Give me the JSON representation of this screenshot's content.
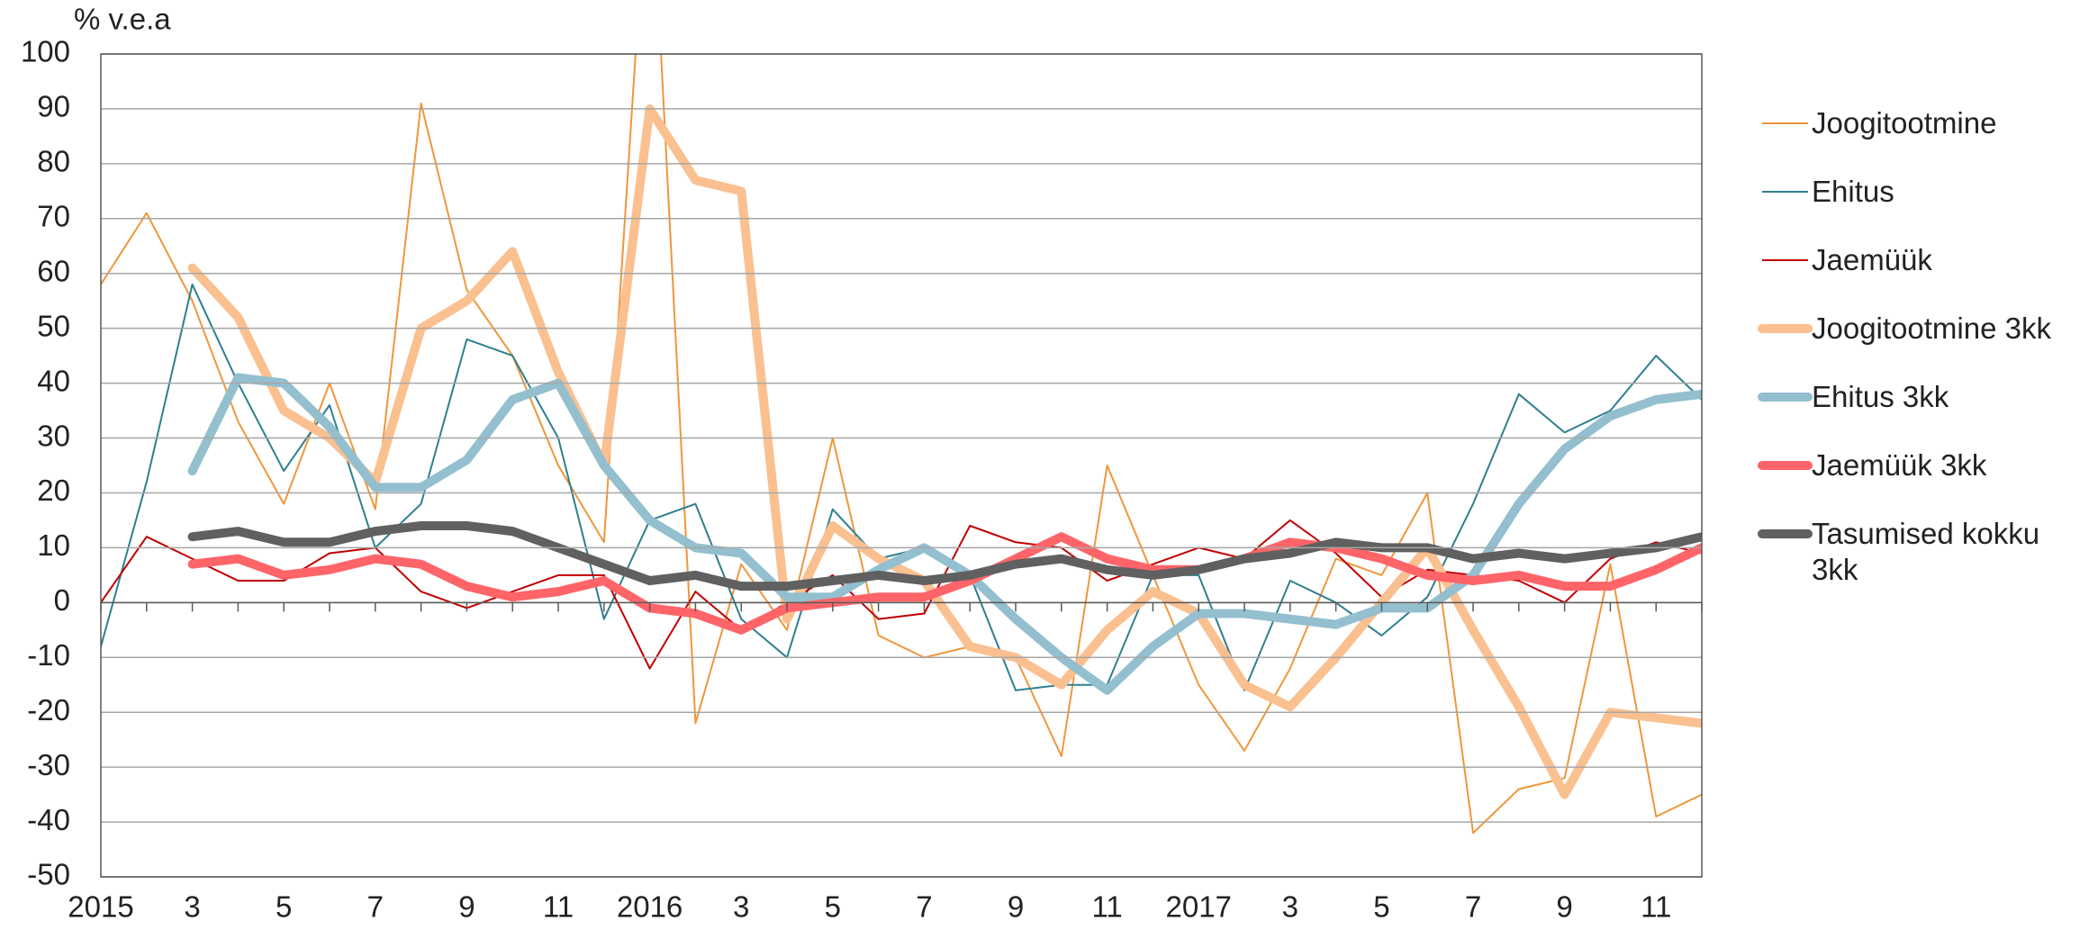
{
  "chart_data": {
    "type": "line",
    "y_label": "% v.e.a",
    "categories": [
      "2015",
      null,
      "3",
      null,
      "5",
      null,
      "7",
      null,
      "9",
      null,
      "11",
      null,
      "2016",
      null,
      "3",
      null,
      "5",
      null,
      "7",
      null,
      "9",
      null,
      "11",
      null,
      "2017",
      null,
      "3",
      null,
      "5",
      null,
      "7",
      null,
      "9",
      null,
      "11",
      null
    ],
    "ylim": [
      -50,
      100
    ],
    "yticks": [
      -50,
      -40,
      -30,
      -20,
      -10,
      0,
      10,
      20,
      30,
      40,
      50,
      60,
      70,
      80,
      90,
      100
    ],
    "grid": true,
    "legend": "right",
    "series": [
      {
        "name": "Joogitootmine",
        "color": "#f0963c",
        "width": 2,
        "values": [
          58,
          71,
          55,
          33,
          18,
          40,
          17,
          91,
          57,
          45,
          25,
          11,
          140,
          -22,
          7,
          -5,
          30,
          -6,
          -10,
          -8,
          -10,
          -28,
          25,
          5,
          -15,
          -27,
          -12,
          8,
          5,
          20,
          -42,
          -34,
          -32,
          7,
          -39,
          -35
        ]
      },
      {
        "name": "Ehitus",
        "color": "#2e7f8f",
        "width": 2,
        "values": [
          -8,
          22,
          58,
          40,
          24,
          36,
          10,
          18,
          48,
          45,
          30,
          -3,
          15,
          18,
          -3,
          -10,
          17,
          8,
          10,
          5,
          -16,
          -15,
          -15,
          5,
          5,
          -16,
          4,
          0,
          -6,
          1,
          18,
          38,
          31,
          35,
          45,
          37
        ]
      },
      {
        "name": "Jaemüük",
        "color": "#c00000",
        "width": 2,
        "values": [
          0,
          12,
          8,
          4,
          4,
          9,
          10,
          2,
          -1,
          2,
          5,
          5,
          -12,
          2,
          -5,
          0,
          5,
          -3,
          -2,
          14,
          11,
          10,
          4,
          7,
          10,
          8,
          15,
          9,
          1,
          6,
          5,
          4,
          0,
          8,
          11,
          9
        ]
      },
      {
        "name": "Joogitootmine 3kk",
        "color": "#fac090",
        "width": 10,
        "values": [
          null,
          null,
          61,
          52,
          35,
          30,
          22,
          50,
          55,
          64,
          42,
          25,
          90,
          77,
          75,
          -3,
          14,
          8,
          4,
          -8,
          -10,
          -15,
          -5,
          2,
          -2,
          -15,
          -19,
          -10,
          0,
          10,
          -5,
          -19,
          -35,
          -20,
          -21,
          -22
        ]
      },
      {
        "name": "Ehitus 3kk",
        "color": "#93bfcf",
        "width": 10,
        "values": [
          null,
          null,
          24,
          41,
          40,
          32,
          21,
          21,
          26,
          37,
          40,
          25,
          15,
          10,
          9,
          1,
          1,
          6,
          10,
          5,
          -3,
          -10,
          -16,
          -8,
          -2,
          -2,
          -3,
          -4,
          -1,
          -1,
          5,
          18,
          28,
          34,
          37,
          38
        ]
      },
      {
        "name": "Jaemüük 3kk",
        "color": "#ff6468",
        "width": 10,
        "values": [
          null,
          null,
          7,
          8,
          5,
          6,
          8,
          7,
          3,
          1,
          2,
          4,
          -1,
          -2,
          -5,
          -1,
          0,
          1,
          1,
          4,
          8,
          12,
          8,
          6,
          6,
          8,
          11,
          10,
          8,
          5,
          4,
          5,
          3,
          3,
          6,
          10
        ]
      },
      {
        "name": "Tasumised kokku 3kk",
        "color": "#606060",
        "width": 10,
        "values": [
          null,
          null,
          12,
          13,
          11,
          11,
          13,
          14,
          14,
          13,
          10,
          7,
          4,
          5,
          3,
          3,
          4,
          5,
          4,
          5,
          7,
          8,
          6,
          5,
          6,
          8,
          9,
          11,
          10,
          10,
          8,
          9,
          8,
          9,
          10,
          12
        ]
      }
    ]
  }
}
